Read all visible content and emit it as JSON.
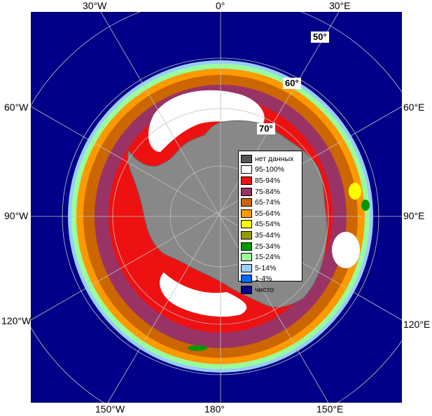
{
  "longitude_labels": {
    "top": [
      "30°W",
      "0°",
      "30°E"
    ],
    "left": [
      "60°W",
      "90°W",
      "120°W"
    ],
    "right": [
      "60°E",
      "90°E",
      "120°E"
    ],
    "bottom": [
      "150°W",
      "180°",
      "150°E"
    ]
  },
  "latitude_labels": [
    "50°",
    "60°",
    "70°"
  ],
  "legend": [
    {
      "label": "нет данных",
      "color": "#555555"
    },
    {
      "label": "95-100%",
      "color": "#ffffff"
    },
    {
      "label": "85-94%",
      "color": "#ee1111"
    },
    {
      "label": "75-84%",
      "color": "#993366"
    },
    {
      "label": "65-74%",
      "color": "#cc6600"
    },
    {
      "label": "55-64%",
      "color": "#ff9900"
    },
    {
      "label": "45-54%",
      "color": "#ffff00"
    },
    {
      "label": "35-44%",
      "color": "#999900"
    },
    {
      "label": "25-34%",
      "color": "#009900"
    },
    {
      "label": "15-24%",
      "color": "#99ff99"
    },
    {
      "label": "5-14%",
      "color": "#99ccff"
    },
    {
      "label": "1-4%",
      "color": "#0066ff"
    },
    {
      "label": "чисто",
      "color": "#000088"
    }
  ],
  "colors": {
    "ocean": "#000088",
    "land": "#888888",
    "grid": "#c0c0c0",
    "ice_edge": "#99ccff"
  }
}
